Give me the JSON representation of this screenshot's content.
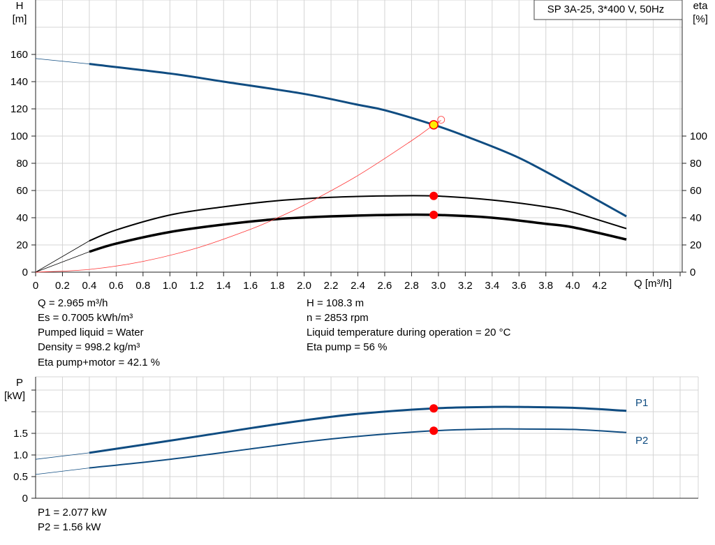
{
  "chart_data": [
    {
      "type": "line",
      "title": "SP 3A-25, 3*400 V, 50Hz",
      "xlabel": "Q [m³/h]",
      "ylabel": [
        "H",
        "[m]"
      ],
      "y2label": [
        "eta",
        "[%]"
      ],
      "xlim": [
        0,
        4.8
      ],
      "ylim": [
        0,
        200
      ],
      "xticks": [
        "0",
        "0.2",
        "0.4",
        "0.6",
        "0.8",
        "1.0",
        "1.2",
        "1.4",
        "1.6",
        "1.8",
        "2.0",
        "2.2",
        "2.4",
        "2.6",
        "2.8",
        "3.0",
        "3.2",
        "3.4",
        "3.6",
        "3.8",
        "4.0",
        "4.2"
      ],
      "yticks": [
        "0",
        "20",
        "40",
        "60",
        "80",
        "100",
        "120",
        "140",
        "160"
      ],
      "y2ticks": [
        "0",
        "20",
        "40",
        "60",
        "80",
        "100"
      ],
      "grid": true,
      "series": [
        {
          "id": "H",
          "color": "#0f4c81",
          "width": 3,
          "x": [
            0,
            0.4,
            1.0,
            1.4,
            2.0,
            2.4,
            2.6,
            2.965,
            3.2,
            3.6,
            4.0,
            4.4
          ],
          "y": [
            157,
            153,
            146,
            140,
            131,
            123,
            119,
            108.3,
            100,
            84,
            63,
            41
          ]
        },
        {
          "id": "eta_pump",
          "color": "#000000",
          "width": 2,
          "x": [
            0,
            0.4,
            0.6,
            1.0,
            1.4,
            1.8,
            2.2,
            2.6,
            2.965,
            3.4,
            3.8,
            4.0,
            4.4
          ],
          "y": [
            0,
            23,
            31,
            42,
            48,
            52.5,
            55,
            56,
            56,
            53,
            48,
            44,
            32
          ]
        },
        {
          "id": "eta_total",
          "color": "#000000",
          "width": 3.5,
          "x": [
            0,
            0.4,
            0.6,
            1.0,
            1.4,
            1.8,
            2.2,
            2.6,
            2.965,
            3.4,
            3.8,
            4.0,
            4.4
          ],
          "y": [
            0,
            15,
            21,
            29.5,
            35,
            39,
            41,
            42,
            42.1,
            40,
            35.5,
            33,
            24
          ]
        },
        {
          "id": "system",
          "color": "#ff3333",
          "width": 0.8,
          "x": [
            0,
            0.4,
            0.8,
            1.2,
            1.6,
            1.8,
            2.0,
            2.4,
            2.8,
            2.965,
            3.02
          ],
          "y": [
            0,
            2,
            7.9,
            17.7,
            31.5,
            39.9,
            49.3,
            71,
            96.6,
            108.3,
            111.5
          ]
        }
      ],
      "duty_point": {
        "x": 2.965,
        "H": 108.3,
        "eta_pump": 56,
        "eta_total": 42.1
      }
    },
    {
      "type": "line",
      "ylabel": [
        "P",
        "[kW]"
      ],
      "xlim": [
        0,
        4.8
      ],
      "ylim": [
        0,
        2.8
      ],
      "yticks": [
        "0",
        "0.5",
        "1.0",
        "1.5"
      ],
      "grid": true,
      "series": [
        {
          "name": "P1",
          "color": "#0f4c81",
          "width": 3,
          "x": [
            0,
            0.4,
            1.0,
            1.6,
            2.0,
            2.4,
            2.965,
            3.4,
            3.6,
            4.0,
            4.4
          ],
          "y": [
            0.9,
            1.05,
            1.33,
            1.62,
            1.8,
            1.95,
            2.077,
            2.11,
            2.11,
            2.09,
            2.02
          ]
        },
        {
          "name": "P2",
          "color": "#0f4c81",
          "width": 2,
          "x": [
            0,
            0.4,
            1.0,
            1.6,
            2.0,
            2.4,
            2.965,
            3.4,
            3.6,
            4.0,
            4.4
          ],
          "y": [
            0.55,
            0.7,
            0.9,
            1.14,
            1.3,
            1.43,
            1.56,
            1.6,
            1.6,
            1.59,
            1.52
          ]
        }
      ],
      "duty_point": {
        "x": 2.965,
        "P1": 2.077,
        "P2": 1.56
      }
    }
  ],
  "info": {
    "left": [
      "Q = 2.965 m³/h",
      "Es = 0.7005 kWh/m³",
      "Pumped liquid = Water",
      "Density = 998.2 kg/m³",
      "Eta pump+motor = 42.1 %"
    ],
    "right": [
      "H = 108.3 m",
      "n = 2853 rpm",
      "Liquid temperature during operation = 20 °C",
      "Eta pump = 56 %"
    ],
    "power": [
      "P1 = 2.077 kW",
      "P2 = 1.56 kW"
    ]
  }
}
